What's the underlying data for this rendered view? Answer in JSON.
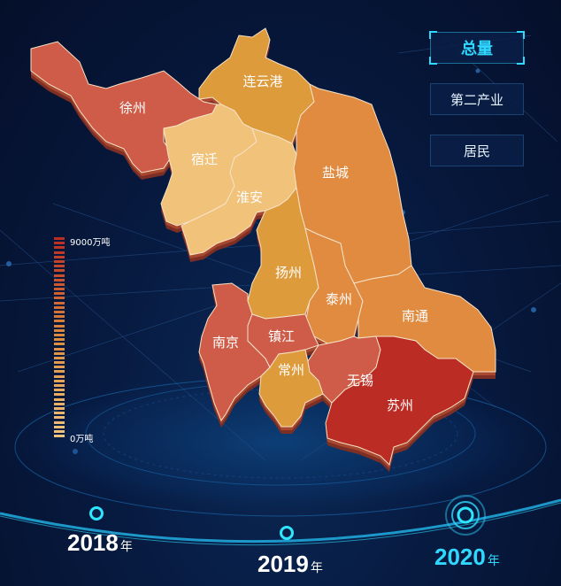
{
  "legend": {
    "max_label": "9000万吨",
    "min_label": "0万吨"
  },
  "buttons": {
    "total": "总量",
    "secondary_industry": "第二产业",
    "residents": "居民"
  },
  "timeline": {
    "years": [
      {
        "year": "2018",
        "unit": "年"
      },
      {
        "year": "2019",
        "unit": "年"
      },
      {
        "year": "2020",
        "unit": "年"
      }
    ],
    "selected": "2020"
  },
  "colors": {
    "low": "#f1c27a",
    "mid": "#dd8b3d",
    "high": "#bb2c24",
    "accent": "#2fd8ff"
  },
  "cities": [
    {
      "name": "徐州",
      "color": "#cf5c48"
    },
    {
      "name": "连云港",
      "color": "#dd9b3c"
    },
    {
      "name": "宿迁",
      "color": "#f1c27a"
    },
    {
      "name": "淮安",
      "color": "#f1c27a"
    },
    {
      "name": "盐城",
      "color": "#e08b40"
    },
    {
      "name": "扬州",
      "color": "#dd9b3c"
    },
    {
      "name": "泰州",
      "color": "#e08b40"
    },
    {
      "name": "南通",
      "color": "#e08b40"
    },
    {
      "name": "南京",
      "color": "#cf5c48"
    },
    {
      "name": "镇江",
      "color": "#cf5c48"
    },
    {
      "name": "常州",
      "color": "#dd9b3c"
    },
    {
      "name": "无锡",
      "color": "#cf5c48"
    },
    {
      "name": "苏州",
      "color": "#bb2c24"
    }
  ]
}
